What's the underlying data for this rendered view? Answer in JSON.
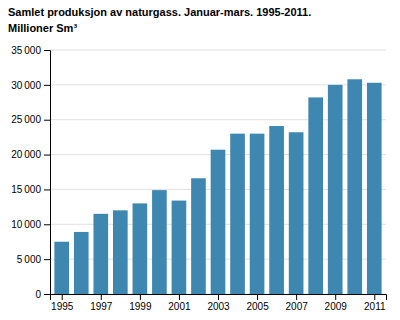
{
  "chart_data": {
    "type": "bar",
    "title": "Samlet produksjon av naturgass. Januar-mars. 1995-2011.",
    "subtitle": "Millioner Sm³",
    "x": [
      1995,
      1996,
      1997,
      1998,
      1999,
      2000,
      2001,
      2002,
      2003,
      2004,
      2005,
      2006,
      2007,
      2008,
      2009,
      2010,
      2011
    ],
    "values": [
      7500,
      8900,
      11500,
      12000,
      13000,
      14900,
      13400,
      16600,
      20700,
      23000,
      23000,
      24100,
      23200,
      28200,
      30000,
      30800,
      30300
    ],
    "color": "#3d87b0",
    "xlim": [
      1994.4,
      2011.6
    ],
    "xticks": [
      1995,
      1997,
      1999,
      2001,
      2003,
      2005,
      2007,
      2009,
      2011
    ],
    "ylim": [
      0,
      35000
    ],
    "yticks": [
      0,
      {
        "value": 5000,
        "label": "5 000"
      },
      {
        "value": 10000,
        "label": "10 000"
      },
      {
        "value": 15000,
        "label": "15 000"
      },
      {
        "value": 20000,
        "label": "20 000"
      },
      {
        "value": 25000,
        "label": "25 000"
      },
      {
        "value": 30000,
        "label": "30 000"
      },
      {
        "value": 35000,
        "label": "35 000"
      }
    ],
    "grid": true
  }
}
